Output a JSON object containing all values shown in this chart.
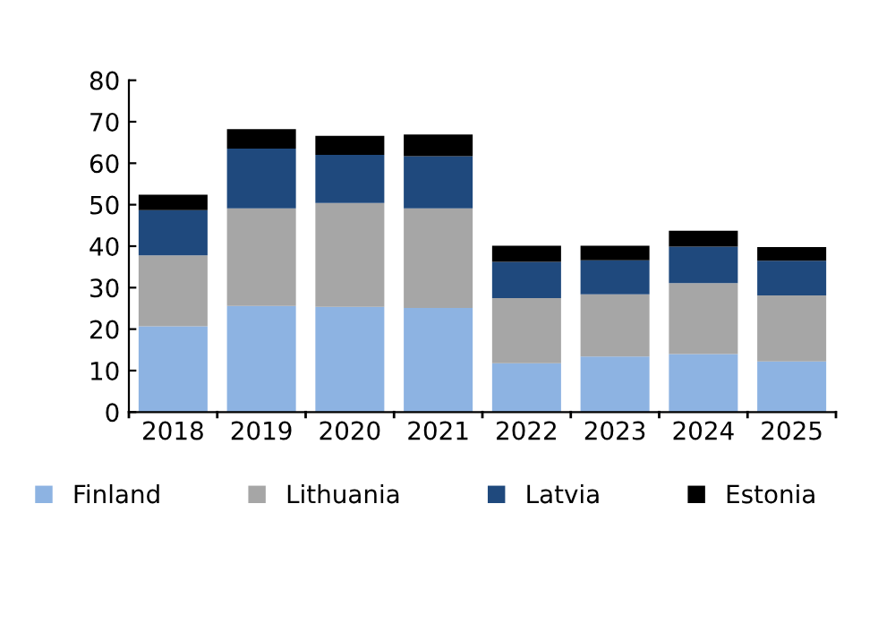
{
  "chart_data": {
    "type": "bar",
    "stacked": true,
    "categories": [
      "2018",
      "2019",
      "2020",
      "2021",
      "2022",
      "2023",
      "2024",
      "2025"
    ],
    "series": [
      {
        "name": "Finland",
        "color": "#8db3e2",
        "values": [
          20.7,
          25.6,
          25.4,
          25.1,
          11.8,
          13.4,
          14.0,
          12.2
        ]
      },
      {
        "name": "Lithuania",
        "color": "#a6a6a6",
        "values": [
          17.1,
          23.5,
          25.0,
          24.0,
          15.7,
          15.0,
          17.1,
          15.9
        ]
      },
      {
        "name": "Latvia",
        "color": "#1f497d",
        "values": [
          10.9,
          14.4,
          11.6,
          12.6,
          8.7,
          8.2,
          8.8,
          8.4
        ]
      },
      {
        "name": "Estonia",
        "color": "#000000",
        "values": [
          3.7,
          4.7,
          4.6,
          5.2,
          3.9,
          3.5,
          3.8,
          3.3
        ]
      }
    ],
    "ylim": [
      0,
      80
    ],
    "yticks": [
      0,
      10,
      20,
      30,
      40,
      50,
      60,
      70,
      80
    ],
    "grid": false,
    "legend": "bottom"
  }
}
